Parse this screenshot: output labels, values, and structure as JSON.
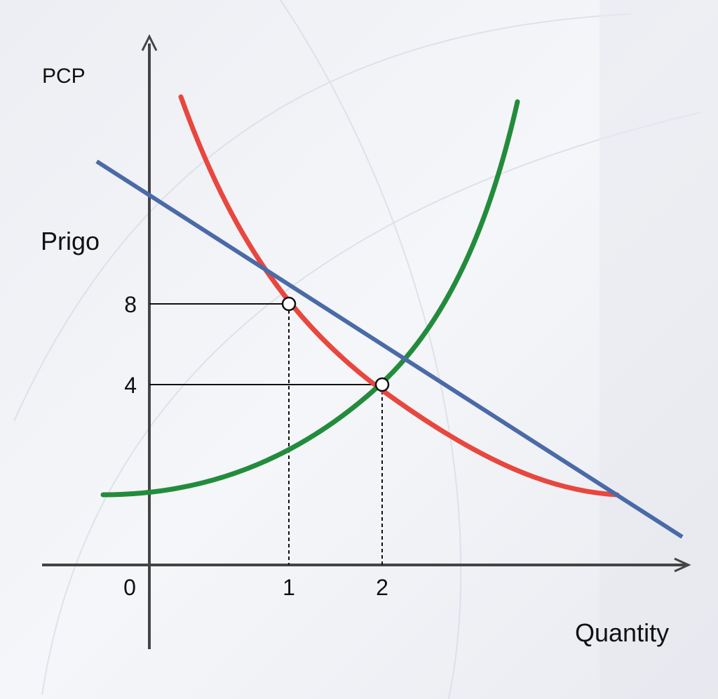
{
  "chart_data": {
    "type": "line",
    "title": "",
    "top_label": "PCP",
    "ylabel": "Prigo",
    "xlabel": "Quantity",
    "x_ticks": [
      {
        "value": 0,
        "label": "0"
      },
      {
        "value": 1,
        "label": "1"
      },
      {
        "value": 2,
        "label": "2"
      }
    ],
    "y_ticks": [
      {
        "value": 4,
        "label": "4"
      },
      {
        "value": 8,
        "label": "8"
      }
    ],
    "points": [
      {
        "x": 1,
        "y": 8
      },
      {
        "x": 2,
        "y": 4
      }
    ],
    "series": [
      {
        "color": "#e8473f",
        "shape": "downward convex curve"
      },
      {
        "color": "#238c3c",
        "shape": "upward convex curve"
      },
      {
        "color": "#4a6aa8",
        "shape": "downward straight line"
      }
    ],
    "grid": false
  }
}
